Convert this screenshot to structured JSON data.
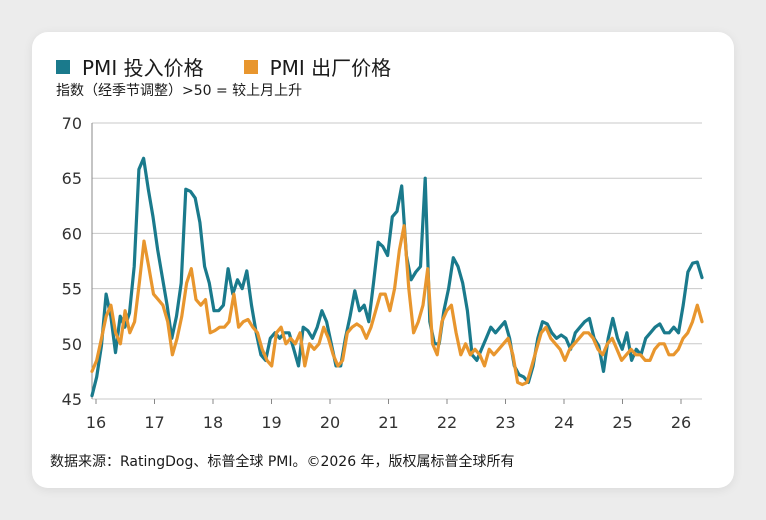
{
  "legend": [
    {
      "label": "PMI 投入价格",
      "color": "#1a7a8c"
    },
    {
      "label": "PMI 出厂价格",
      "color": "#e8962e"
    }
  ],
  "subtitle": "指数（经季节调整）>50 = 较上月上升",
  "footer": "数据来源：RatingDog、标普全球 PMI。©2026 年，版权属标普全球所有",
  "chart_data": {
    "type": "line",
    "x_tick_labels": [
      "16",
      "17",
      "18",
      "19",
      "20",
      "21",
      "22",
      "23",
      "24",
      "25",
      "26"
    ],
    "y_ticks": [
      45,
      50,
      55,
      60,
      65,
      70
    ],
    "ylim": [
      45,
      70
    ],
    "grid": true,
    "legend_placement": "top-left",
    "series": [
      {
        "name": "PMI 投入价格",
        "color": "#1a7a8c",
        "values": [
          45.3,
          47.0,
          49.8,
          54.5,
          52.5,
          49.2,
          52.5,
          51.5,
          52.8,
          57.0,
          65.8,
          66.8,
          64.0,
          61.5,
          58.5,
          56.0,
          53.5,
          50.5,
          52.5,
          55.5,
          64.0,
          63.8,
          63.2,
          61.0,
          57.0,
          55.5,
          53.0,
          53.0,
          53.5,
          56.8,
          54.5,
          55.8,
          55.0,
          56.6,
          53.5,
          51.0,
          49.0,
          48.5,
          50.5,
          51.0,
          50.5,
          51.0,
          51.0,
          49.5,
          48.0,
          51.5,
          51.2,
          50.5,
          51.5,
          53.0,
          52.0,
          50.0,
          48.0,
          48.0,
          50.5,
          52.5,
          54.8,
          53.0,
          53.5,
          52.0,
          55.5,
          59.2,
          58.8,
          58.0,
          61.5,
          62.0,
          64.3,
          58.0,
          55.8,
          56.5,
          57.0,
          65.0,
          52.0,
          50.0,
          50.0,
          53.0,
          55.0,
          57.8,
          57.0,
          55.5,
          53.0,
          49.0,
          48.5,
          49.5,
          50.5,
          51.5,
          51.0,
          51.5,
          52.0,
          50.5,
          48.0,
          47.2,
          47.0,
          46.5,
          48.0,
          50.5,
          52.0,
          51.8,
          51.0,
          50.5,
          50.8,
          50.5,
          49.5,
          51.0,
          51.5,
          52.0,
          52.3,
          50.5,
          49.8,
          47.5,
          50.5,
          52.3,
          50.5,
          49.5,
          51.0,
          48.5,
          49.5,
          49.0,
          50.5,
          51.0,
          51.5,
          51.8,
          51.0,
          51.0,
          51.5,
          51.0,
          53.5,
          56.5,
          57.3,
          57.4,
          56.0
        ]
      },
      {
        "name": "PMI 出厂价格",
        "color": "#e8962e",
        "values": [
          47.5,
          48.5,
          50.5,
          52.5,
          53.5,
          51.0,
          50.0,
          53.0,
          51.0,
          52.0,
          55.5,
          59.3,
          57.0,
          54.5,
          54.0,
          53.5,
          52.0,
          49.0,
          50.5,
          52.5,
          55.5,
          56.8,
          54.0,
          53.5,
          54.0,
          51.0,
          51.2,
          51.5,
          51.5,
          52.0,
          54.5,
          51.5,
          52.0,
          52.2,
          51.5,
          51.0,
          49.5,
          48.5,
          48.0,
          51.0,
          51.5,
          50.0,
          50.5,
          50.0,
          51.0,
          48.0,
          50.0,
          49.5,
          50.0,
          51.5,
          50.5,
          49.0,
          48.0,
          48.5,
          51.0,
          51.5,
          51.8,
          51.5,
          50.5,
          51.5,
          53.0,
          54.5,
          54.5,
          53.0,
          55.0,
          58.5,
          60.7,
          55.0,
          51.0,
          52.0,
          53.5,
          56.8,
          50.0,
          49.0,
          52.0,
          53.0,
          53.5,
          51.0,
          49.0,
          50.0,
          49.0,
          49.5,
          49.0,
          48.0,
          49.5,
          49.0,
          49.5,
          50.0,
          50.5,
          49.0,
          46.5,
          46.3,
          46.5,
          48.0,
          49.5,
          51.0,
          51.5,
          50.5,
          50.0,
          49.5,
          48.5,
          49.5,
          50.0,
          50.5,
          51.0,
          51.0,
          50.5,
          49.5,
          49.0,
          50.0,
          50.5,
          49.5,
          48.5,
          49.0,
          49.5,
          49.0,
          49.0,
          48.5,
          48.5,
          49.5,
          50.0,
          50.0,
          49.0,
          49.0,
          49.5,
          50.5,
          51.0,
          52.0,
          53.5,
          52.0
        ]
      }
    ]
  }
}
